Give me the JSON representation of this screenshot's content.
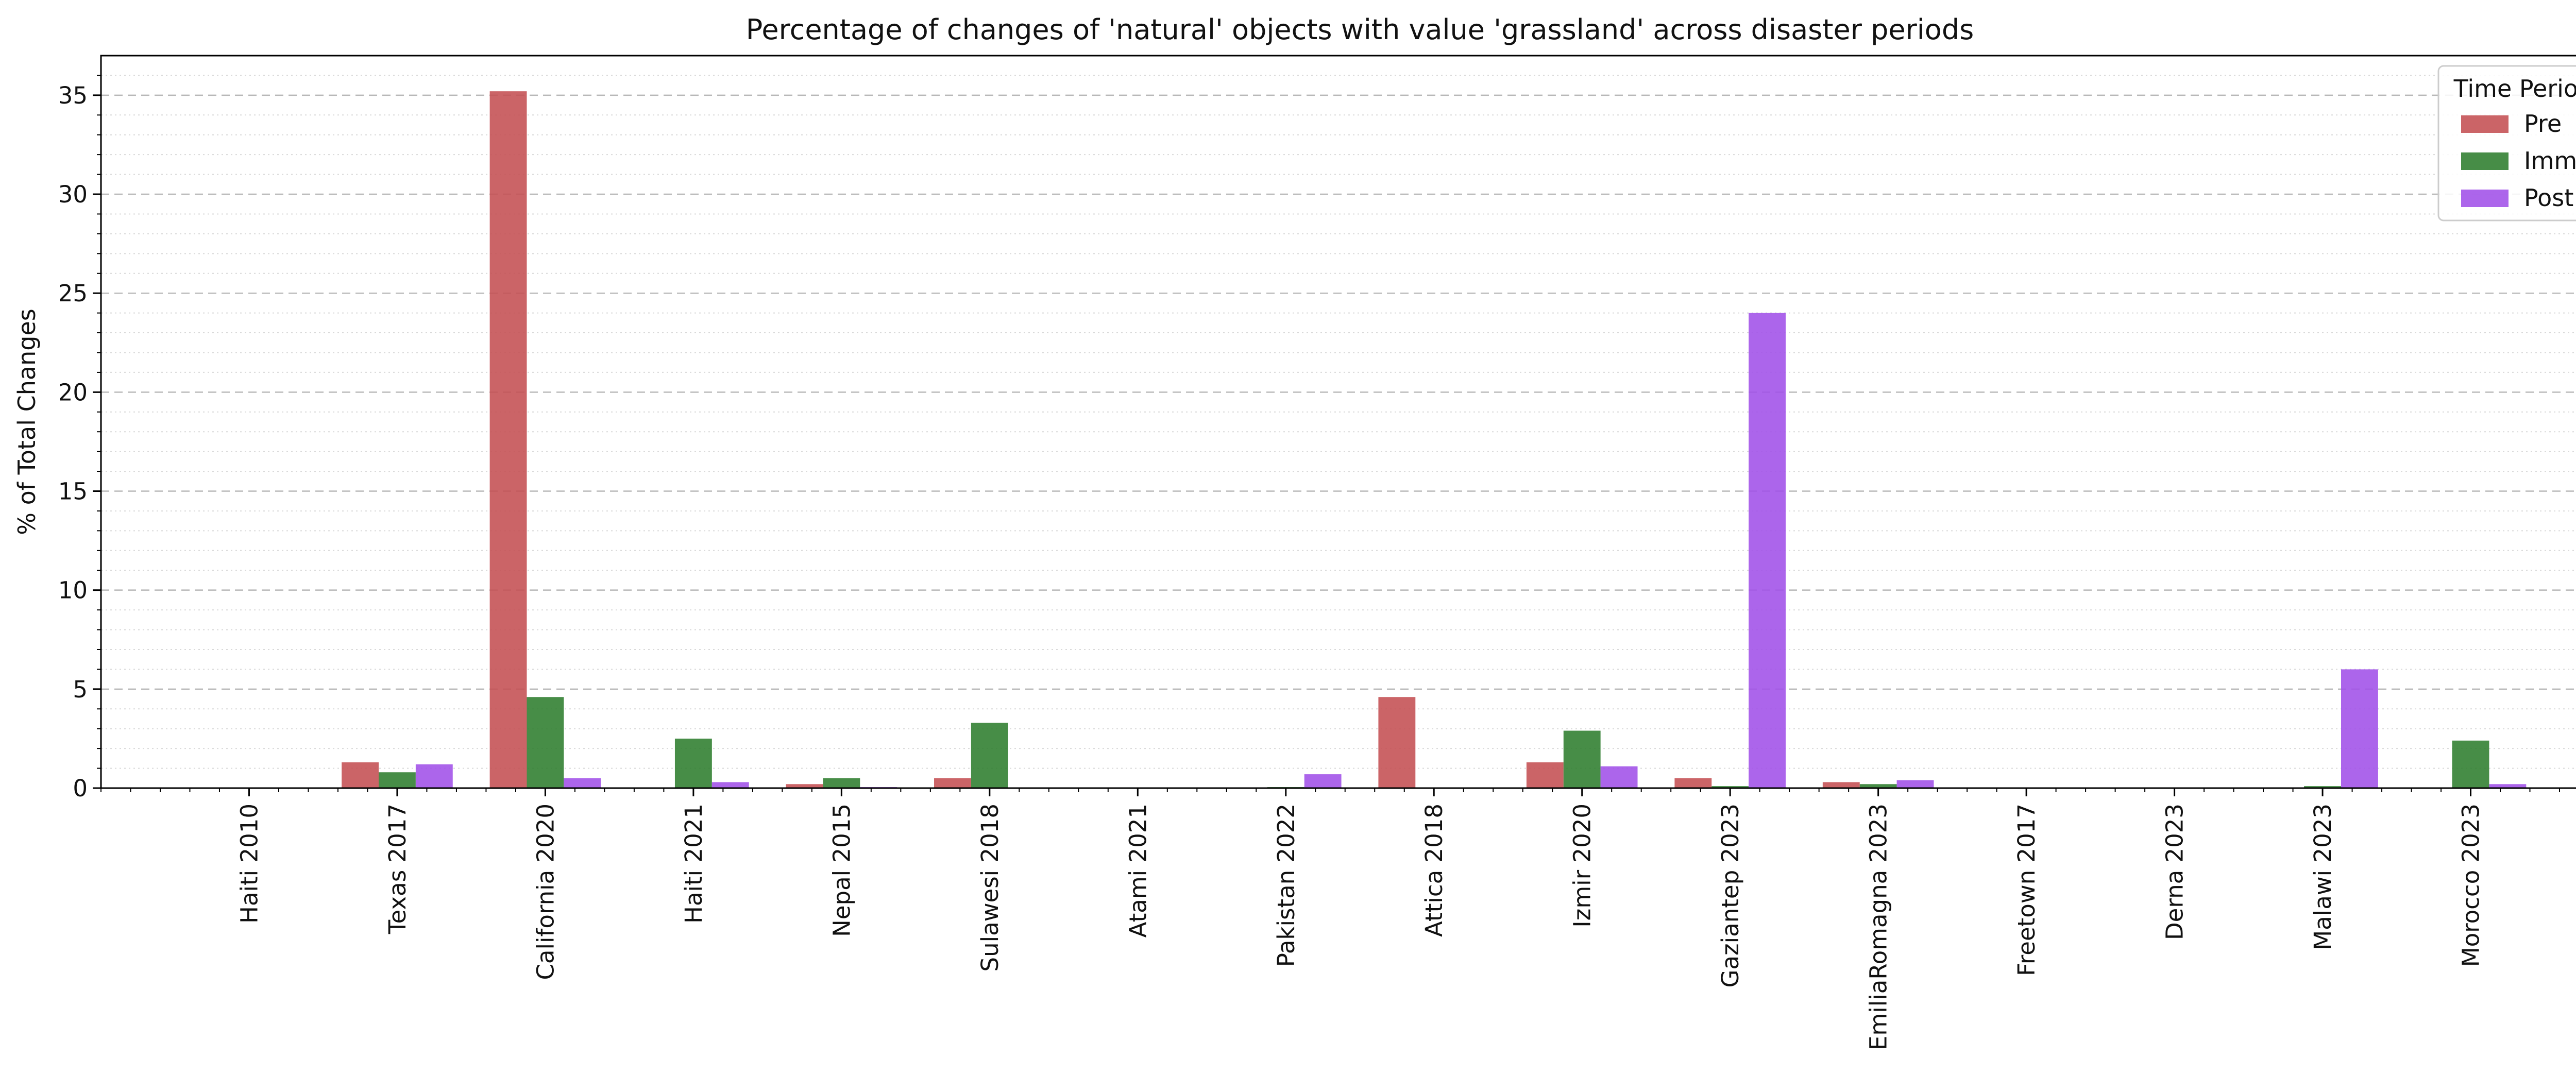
{
  "chart_data": {
    "type": "bar",
    "title": "Percentage of changes of 'natural' objects with value 'grassland' across disaster periods",
    "xlabel": "",
    "ylabel": "% of Total Changes",
    "ylim": [
      0,
      37
    ],
    "yticks": [
      0,
      5,
      10,
      15,
      20,
      25,
      30,
      35
    ],
    "grid": true,
    "legend": {
      "title": "Time Period",
      "position": "top-right"
    },
    "categories": [
      "Haiti 2010",
      "Texas 2017",
      "California 2020",
      "Haiti 2021",
      "Nepal 2015",
      "Sulawesi 2018",
      "Atami 2021",
      "Pakistan 2022",
      "Attica 2018",
      "Izmir 2020",
      "Gaziantep 2023",
      "EmiliaRomagna 2023",
      "Freetown 2017",
      "Derna 2023",
      "Malawi 2023",
      "Morocco 2023"
    ],
    "series": [
      {
        "name": "Pre",
        "color": "#c44e52",
        "values": [
          0,
          1.3,
          35.2,
          0,
          0.2,
          0.5,
          0,
          0,
          4.6,
          1.3,
          0.5,
          0.3,
          0,
          0,
          0,
          0
        ]
      },
      {
        "name": "Imm",
        "color": "#2e7d2e",
        "values": [
          0,
          0.8,
          4.6,
          2.5,
          0.5,
          3.3,
          0,
          0.05,
          0,
          2.9,
          0.1,
          0.2,
          0,
          0,
          0.1,
          2.4
        ]
      },
      {
        "name": "Post",
        "color": "#a050e8",
        "values": [
          0,
          1.2,
          0.5,
          0.3,
          0.05,
          0,
          0,
          0.7,
          0,
          1.1,
          24.0,
          0.4,
          0,
          0,
          6.0,
          0.2
        ]
      }
    ]
  }
}
